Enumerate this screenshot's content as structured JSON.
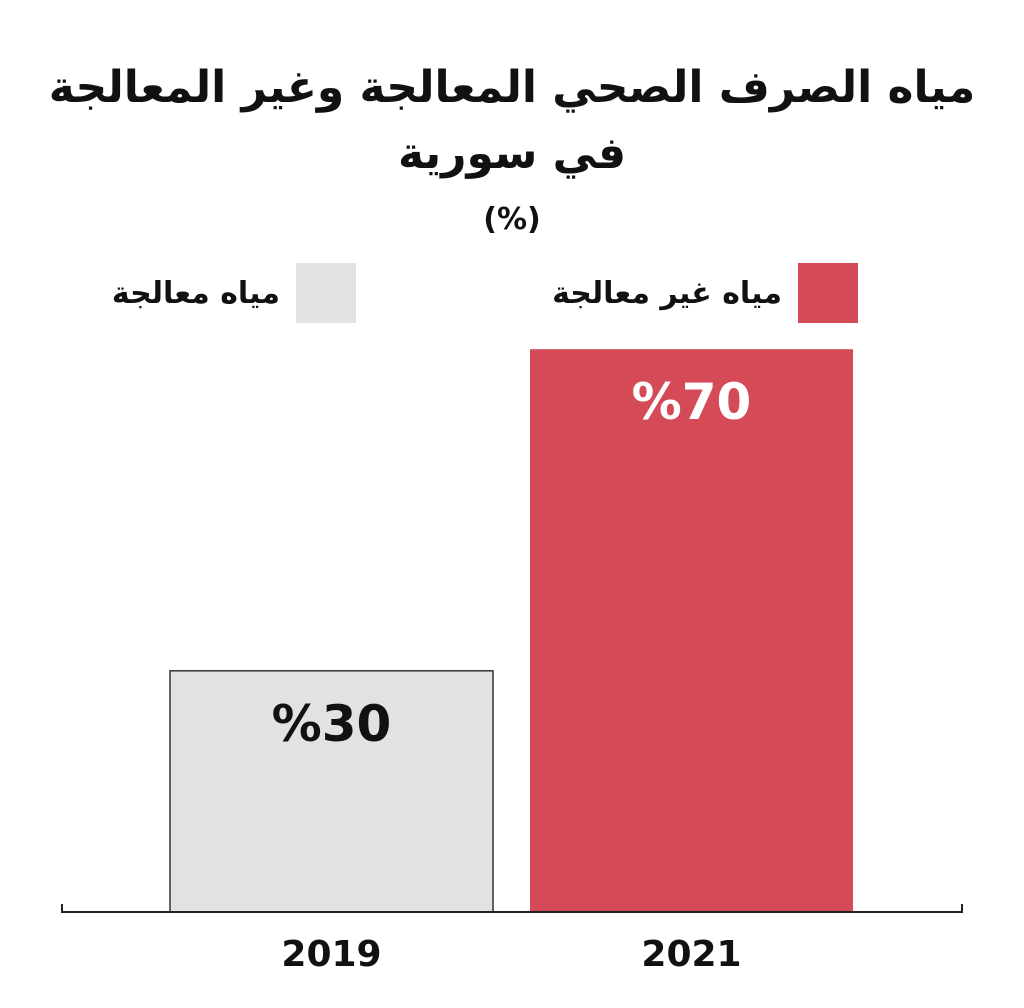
{
  "chart_data": {
    "type": "bar",
    "title_line1": "مياه الصرف الصحي المعالجة وغير المعالجة",
    "title_line2": "في سورية",
    "subtitle": "(%)",
    "categories": [
      "2019",
      "2021"
    ],
    "values": [
      30,
      70
    ],
    "value_labels": [
      "%30",
      "%70"
    ],
    "series_names": [
      "مياه معالجة",
      "مياه غير معالجة"
    ],
    "colors": {
      "treated": "#e1e2e3",
      "untreated": "#d44a57",
      "treated_text": "#111111",
      "untreated_text": "#ffffff",
      "axis": "#222222"
    },
    "ylim": [
      0,
      100
    ],
    "grid": false,
    "legend_position": "top"
  }
}
